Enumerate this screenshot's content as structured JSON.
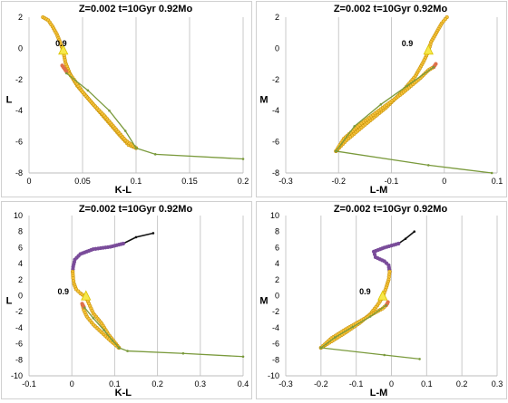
{
  "colors": {
    "track": "#f0b400",
    "track_edge": "#c08a00",
    "green": "#7a9a3c",
    "salmon": "#e0704a",
    "purple": "#7a4c9a",
    "black": "#111111",
    "marker": "#f7e84a",
    "grid": "#c9c9c9"
  },
  "chart_data": [
    {
      "type": "line",
      "title": "Z=0.002  t=10Gyr 0.92Mo",
      "xlabel": "K-L",
      "ylabel": "L",
      "xlim": [
        0,
        0.2
      ],
      "ylim": [
        2,
        -8
      ],
      "xticks": [
        0,
        0.05,
        0.1,
        0.15,
        0.2
      ],
      "xtick_labels": [
        "0",
        "0.05",
        "0.1",
        "0.15",
        "0.2"
      ],
      "yticks": [
        -8,
        -6,
        -4,
        -2,
        0,
        2
      ],
      "ytick_labels": [
        "-8",
        "-6",
        "-4",
        "-2",
        "0",
        "2"
      ],
      "annotation": {
        "text": "0.9",
        "x": 0.03,
        "y": 0.3
      },
      "marker": {
        "x": 0.032,
        "y": -0.2
      },
      "series": [
        {
          "color": "track",
          "style": "dots",
          "points": [
            [
              0.013,
              2.0
            ],
            [
              0.018,
              1.8
            ],
            [
              0.022,
              1.4
            ],
            [
              0.026,
              0.9
            ],
            [
              0.029,
              0.4
            ],
            [
              0.032,
              -0.2
            ],
            [
              0.034,
              -0.9
            ],
            [
              0.038,
              -1.6
            ],
            [
              0.045,
              -2.4
            ],
            [
              0.055,
              -3.2
            ],
            [
              0.065,
              -4.0
            ],
            [
              0.075,
              -4.8
            ],
            [
              0.085,
              -5.6
            ],
            [
              0.093,
              -6.2
            ],
            [
              0.1,
              -6.4
            ]
          ]
        },
        {
          "color": "track",
          "style": "dots",
          "points": [
            [
              0.1,
              -6.4
            ],
            [
              0.09,
              -5.9
            ],
            [
              0.08,
              -5.1
            ],
            [
              0.07,
              -4.3
            ],
            [
              0.06,
              -3.6
            ],
            [
              0.05,
              -2.8
            ],
            [
              0.042,
              -2.0
            ],
            [
              0.036,
              -1.5
            ],
            [
              0.032,
              -1.2
            ]
          ]
        },
        {
          "color": "salmon",
          "style": "dots",
          "points": [
            [
              0.031,
              -1.1
            ],
            [
              0.033,
              -1.3
            ],
            [
              0.035,
              -1.5
            ]
          ]
        },
        {
          "color": "green",
          "style": "line",
          "points": [
            [
              0.1,
              -6.4
            ],
            [
              0.118,
              -6.8
            ],
            [
              0.2,
              -7.1
            ]
          ]
        },
        {
          "color": "green",
          "style": "line",
          "points": [
            [
              0.035,
              -1.6
            ],
            [
              0.055,
              -2.7
            ],
            [
              0.075,
              -4.0
            ],
            [
              0.09,
              -5.3
            ],
            [
              0.1,
              -6.4
            ]
          ]
        }
      ]
    },
    {
      "type": "line",
      "title": "Z=0.002  t=10Gyr 0.92Mo",
      "xlabel": "L-M",
      "ylabel": "M",
      "xlim": [
        -0.3,
        0.1
      ],
      "ylim": [
        2,
        -8
      ],
      "xticks": [
        -0.3,
        -0.2,
        -0.1,
        0,
        0.1
      ],
      "xtick_labels": [
        "-0.3",
        "-0.2",
        "-0.1",
        "0",
        "0.1"
      ],
      "yticks": [
        -8,
        -6,
        -4,
        -2,
        0,
        2
      ],
      "ytick_labels": [
        "-8",
        "-6",
        "-4",
        "-2",
        "0",
        "2"
      ],
      "annotation": {
        "text": "0.9",
        "x": -0.07,
        "y": 0.3
      },
      "marker": {
        "x": -0.03,
        "y": -0.2
      },
      "series": [
        {
          "color": "track",
          "style": "dots",
          "points": [
            [
              0.005,
              2.0
            ],
            [
              -0.005,
              1.6
            ],
            [
              -0.015,
              1.0
            ],
            [
              -0.025,
              0.4
            ],
            [
              -0.03,
              -0.2
            ],
            [
              -0.04,
              -0.9
            ],
            [
              -0.055,
              -1.8
            ],
            [
              -0.08,
              -2.8
            ],
            [
              -0.11,
              -3.8
            ],
            [
              -0.15,
              -4.9
            ],
            [
              -0.185,
              -5.9
            ],
            [
              -0.205,
              -6.6
            ]
          ]
        },
        {
          "color": "track",
          "style": "dots",
          "points": [
            [
              -0.205,
              -6.6
            ],
            [
              -0.19,
              -5.8
            ],
            [
              -0.16,
              -4.9
            ],
            [
              -0.12,
              -3.9
            ],
            [
              -0.08,
              -2.9
            ],
            [
              -0.045,
              -1.9
            ],
            [
              -0.03,
              -1.4
            ],
            [
              -0.02,
              -1.2
            ]
          ]
        },
        {
          "color": "salmon",
          "style": "dots",
          "points": [
            [
              -0.02,
              -1.2
            ],
            [
              -0.018,
              -1.1
            ],
            [
              -0.016,
              -1.0
            ]
          ]
        },
        {
          "color": "green",
          "style": "line",
          "points": [
            [
              -0.205,
              -6.6
            ],
            [
              -0.03,
              -7.5
            ],
            [
              0.09,
              -8.0
            ]
          ]
        },
        {
          "color": "green",
          "style": "line",
          "points": [
            [
              -0.02,
              -1.2
            ],
            [
              -0.07,
              -2.4
            ],
            [
              -0.12,
              -3.6
            ],
            [
              -0.17,
              -5.0
            ],
            [
              -0.205,
              -6.6
            ]
          ]
        }
      ]
    },
    {
      "type": "line",
      "title": "Z=0.002  t=10Gyr 0.92Mo",
      "xlabel": "K-L",
      "ylabel": "L",
      "xlim": [
        -0.1,
        0.4
      ],
      "ylim": [
        10,
        -10
      ],
      "xticks": [
        -0.1,
        0,
        0.1,
        0.2,
        0.3,
        0.4
      ],
      "xtick_labels": [
        "-0.1",
        "0",
        "0.1",
        "0.2",
        "0.3",
        "0.4"
      ],
      "yticks": [
        -10,
        -8,
        -6,
        -4,
        -2,
        0,
        2,
        4,
        6,
        8,
        10
      ],
      "ytick_labels": [
        "-10",
        "-8",
        "-6",
        "-4",
        "-2",
        "0",
        "2",
        "4",
        "6",
        "8",
        "10"
      ],
      "annotation": {
        "text": "0.9",
        "x": -0.02,
        "y": 0.5
      },
      "marker": {
        "x": 0.033,
        "y": -0.2
      },
      "series": [
        {
          "color": "black",
          "style": "line",
          "points": [
            [
              0.19,
              7.8
            ],
            [
              0.15,
              7.3
            ],
            [
              0.12,
              6.5
            ]
          ]
        },
        {
          "color": "purple",
          "style": "dots",
          "points": [
            [
              0.12,
              6.5
            ],
            [
              0.09,
              6.1
            ],
            [
              0.05,
              5.8
            ],
            [
              0.02,
              5.2
            ],
            [
              0.007,
              4.5
            ],
            [
              0.003,
              3.6
            ],
            [
              0.002,
              3.0
            ]
          ]
        },
        {
          "color": "track",
          "style": "dots",
          "points": [
            [
              0.002,
              3.0
            ],
            [
              0.003,
              2.2
            ],
            [
              0.005,
              1.5
            ],
            [
              0.01,
              0.8
            ],
            [
              0.02,
              0.3
            ],
            [
              0.033,
              -0.2
            ],
            [
              0.04,
              -1.0
            ],
            [
              0.05,
              -2.2
            ],
            [
              0.07,
              -3.5
            ],
            [
              0.085,
              -4.8
            ],
            [
              0.1,
              -5.8
            ],
            [
              0.11,
              -6.5
            ]
          ]
        },
        {
          "color": "track",
          "style": "dots",
          "points": [
            [
              0.11,
              -6.5
            ],
            [
              0.09,
              -5.6
            ],
            [
              0.07,
              -4.6
            ],
            [
              0.05,
              -3.6
            ],
            [
              0.035,
              -2.6
            ],
            [
              0.028,
              -1.8
            ],
            [
              0.025,
              -1.2
            ]
          ]
        },
        {
          "color": "salmon",
          "style": "dots",
          "points": [
            [
              0.024,
              -1.0
            ],
            [
              0.026,
              -1.2
            ],
            [
              0.028,
              -1.4
            ]
          ]
        },
        {
          "color": "green",
          "style": "line",
          "points": [
            [
              0.11,
              -6.5
            ],
            [
              0.13,
              -6.9
            ],
            [
              0.26,
              -7.2
            ],
            [
              0.4,
              -7.6
            ]
          ]
        },
        {
          "color": "green",
          "style": "line",
          "points": [
            [
              0.03,
              -1.5
            ],
            [
              0.05,
              -2.8
            ],
            [
              0.075,
              -4.3
            ],
            [
              0.095,
              -5.6
            ],
            [
              0.11,
              -6.5
            ]
          ]
        }
      ]
    },
    {
      "type": "line",
      "title": "Z=0.002  t=10Gyr 0.92Mo",
      "xlabel": "L-M",
      "ylabel": "M",
      "xlim": [
        -0.3,
        0.3
      ],
      "ylim": [
        10,
        -10
      ],
      "xticks": [
        -0.3,
        -0.2,
        -0.1,
        0,
        0.1,
        0.2,
        0.3
      ],
      "xtick_labels": [
        "-0.3",
        "-0.2",
        "-0.1",
        "0",
        "0.1",
        "0.2",
        "0.3"
      ],
      "yticks": [
        -10,
        -8,
        -6,
        -4,
        -2,
        0,
        2,
        4,
        6,
        8,
        10
      ],
      "ytick_labels": [
        "-10",
        "-8",
        "-6",
        "-4",
        "-2",
        "0",
        "2",
        "4",
        "6",
        "8",
        "10"
      ],
      "annotation": {
        "text": "0.9",
        "x": -0.075,
        "y": 0.5
      },
      "marker": {
        "x": -0.025,
        "y": -0.2
      },
      "series": [
        {
          "color": "black",
          "style": "line",
          "points": [
            [
              0.065,
              8.0
            ],
            [
              0.04,
              7.1
            ],
            [
              0.02,
              6.5
            ]
          ]
        },
        {
          "color": "purple",
          "style": "dots",
          "points": [
            [
              0.02,
              6.5
            ],
            [
              -0.02,
              6.0
            ],
            [
              -0.05,
              5.5
            ],
            [
              -0.045,
              4.8
            ],
            [
              -0.02,
              4.3
            ],
            [
              -0.008,
              3.8
            ],
            [
              -0.005,
              3.0
            ]
          ]
        },
        {
          "color": "track",
          "style": "dots",
          "points": [
            [
              -0.005,
              3.0
            ],
            [
              -0.008,
              2.0
            ],
            [
              -0.015,
              1.0
            ],
            [
              -0.025,
              -0.2
            ],
            [
              -0.04,
              -1.2
            ],
            [
              -0.06,
              -2.3
            ],
            [
              -0.09,
              -3.4
            ],
            [
              -0.13,
              -4.6
            ],
            [
              -0.17,
              -5.7
            ],
            [
              -0.2,
              -6.5
            ]
          ]
        },
        {
          "color": "track",
          "style": "dots",
          "points": [
            [
              -0.2,
              -6.5
            ],
            [
              -0.17,
              -5.3
            ],
            [
              -0.13,
              -4.2
            ],
            [
              -0.09,
              -3.2
            ],
            [
              -0.05,
              -2.2
            ],
            [
              -0.025,
              -1.6
            ],
            [
              -0.015,
              -1.2
            ]
          ]
        },
        {
          "color": "salmon",
          "style": "dots",
          "points": [
            [
              -0.015,
              -1.2
            ],
            [
              -0.012,
              -1.0
            ],
            [
              -0.01,
              -0.8
            ]
          ]
        },
        {
          "color": "green",
          "style": "line",
          "points": [
            [
              -0.2,
              -6.5
            ],
            [
              -0.02,
              -7.4
            ],
            [
              0.08,
              -7.9
            ]
          ]
        },
        {
          "color": "green",
          "style": "line",
          "points": [
            [
              -0.015,
              -1.2
            ],
            [
              -0.06,
              -2.6
            ],
            [
              -0.11,
              -3.9
            ],
            [
              -0.16,
              -5.2
            ],
            [
              -0.2,
              -6.5
            ]
          ]
        }
      ]
    }
  ]
}
